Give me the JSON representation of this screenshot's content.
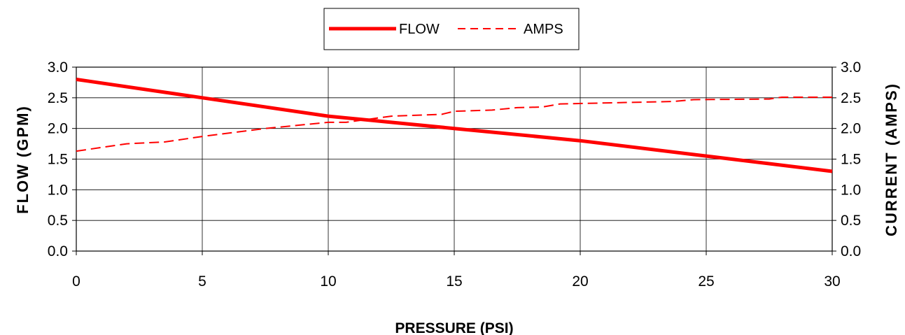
{
  "chart_data": {
    "type": "line",
    "xlabel": "PRESSURE (PSI)",
    "ylabel": "FLOW (GPM)",
    "y2label": "CURRENT (AMPS)",
    "xlim": [
      0,
      30
    ],
    "ylim": [
      0,
      3.0
    ],
    "y2lim": [
      0,
      3.0
    ],
    "x_ticks": [
      "0",
      "5",
      "10",
      "15",
      "20",
      "25",
      "30"
    ],
    "y_ticks": [
      "0.0",
      "0.5",
      "1.0",
      "1.5",
      "2.0",
      "2.5",
      "3.0"
    ],
    "y2_ticks": [
      "0.0",
      "0.5",
      "1.0",
      "1.5",
      "2.0",
      "2.5",
      "3.0"
    ],
    "grid": true,
    "legend_position": "top-center",
    "series": [
      {
        "name": "FLOW",
        "axis": "left",
        "style": "solid",
        "color": "#ff0000",
        "x": [
          0,
          5,
          10,
          15,
          20,
          25,
          30
        ],
        "y": [
          2.8,
          2.5,
          2.2,
          2.0,
          1.8,
          1.55,
          1.3
        ]
      },
      {
        "name": "AMPS",
        "axis": "right",
        "style": "dashed",
        "color": "#ff0000",
        "x": [
          0,
          2,
          3.5,
          5,
          7.5,
          10,
          10.7,
          12.5,
          14.5,
          15,
          16.5,
          17.5,
          18.5,
          19.2,
          23.7,
          24.5,
          27.5,
          28,
          30
        ],
        "y": [
          1.63,
          1.75,
          1.78,
          1.87,
          2.0,
          2.1,
          2.1,
          2.2,
          2.23,
          2.28,
          2.3,
          2.34,
          2.35,
          2.4,
          2.44,
          2.47,
          2.48,
          2.51,
          2.51
        ]
      }
    ]
  }
}
